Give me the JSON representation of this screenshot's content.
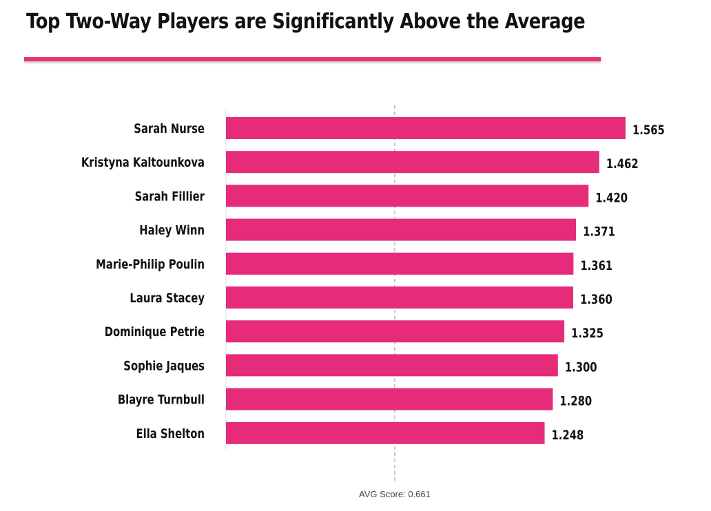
{
  "chart_data": {
    "type": "bar",
    "orientation": "horizontal",
    "title": "Top Two-Way Players are Significantly Above the Average",
    "categories": [
      "Sarah Nurse",
      "Kristyna Kaltounkova",
      "Sarah Fillier",
      "Haley Winn",
      "Marie-Philip Poulin",
      "Laura Stacey",
      "Dominique Petrie",
      "Sophie Jaques",
      "Blayre Turnbull",
      "Ella Shelton"
    ],
    "values": [
      1.565,
      1.462,
      1.42,
      1.371,
      1.361,
      1.36,
      1.325,
      1.3,
      1.28,
      1.248
    ],
    "value_labels": [
      "1.565",
      "1.462",
      "1.420",
      "1.371",
      "1.361",
      "1.360",
      "1.325",
      "1.300",
      "1.280",
      "1.248"
    ],
    "xlim": [
      0,
      1.565
    ],
    "reference_line": {
      "value": 0.661,
      "label": "AVG Score: 0.661",
      "style": "dashed"
    },
    "bar_color": "#e52b7a",
    "accent_color": "#e8326e",
    "grid": false,
    "legend": "none"
  }
}
